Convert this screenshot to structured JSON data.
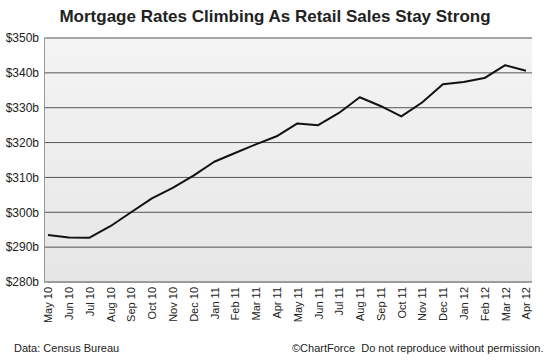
{
  "chart_data": {
    "type": "line",
    "title": "Mortgage Rates Climbing As Retail Sales Stay Strong",
    "categories": [
      "May 10",
      "Jun 10",
      "Jul 10",
      "Aug 10",
      "Sep 10",
      "Oct 10",
      "Nov 10",
      "Dec 10",
      "Jan 11",
      "Feb 11",
      "Mar 11",
      "Apr 11",
      "May 11",
      "Jun 11",
      "Jul 11",
      "Aug 11",
      "Sep 11",
      "Oct 11",
      "Nov 11",
      "Dec 11",
      "Jan 12",
      "Feb 12",
      "Mar 12",
      "Apr 12"
    ],
    "values": [
      293.5,
      292.8,
      292.7,
      296,
      300,
      304,
      307,
      310.5,
      314.5,
      317,
      319.5,
      321.8,
      325.5,
      325,
      328.5,
      333,
      330.5,
      327.5,
      331.5,
      336.7,
      337.4,
      338.5,
      342.2,
      340.6
    ],
    "color": "#111111",
    "ylim": [
      280,
      350
    ],
    "yticks": [
      {
        "value": 280,
        "label": "$280b"
      },
      {
        "value": 290,
        "label": "$290b"
      },
      {
        "value": 300,
        "label": "$300b"
      },
      {
        "value": 310,
        "label": "$310b"
      },
      {
        "value": 320,
        "label": "$320b"
      },
      {
        "value": 330,
        "label": "$330b"
      },
      {
        "value": 340,
        "label": "$340b"
      },
      {
        "value": 350,
        "label": "$350b"
      }
    ],
    "grid": true,
    "annotations": [
      "Data: Census Bureau",
      "©ChartForce  Do not reproduce without permission."
    ]
  }
}
